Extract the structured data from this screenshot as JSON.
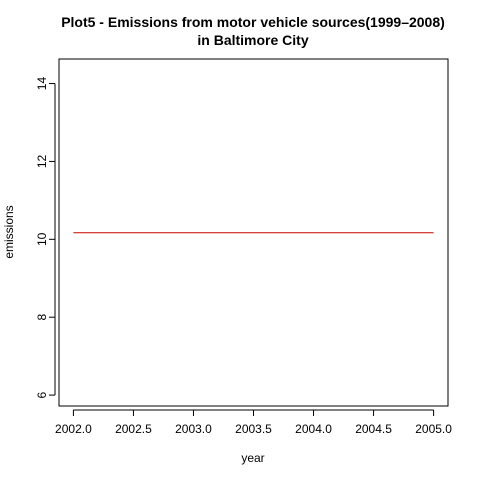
{
  "chart_data": {
    "type": "line",
    "title_lines": [
      "Plot5 - Emissions from motor vehicle sources(1999–2008)",
      "in Baltimore City"
    ],
    "xlabel": "year",
    "ylabel": "emissions",
    "xlim": [
      2001.88,
      2005.12
    ],
    "ylim": [
      5.72,
      14.63
    ],
    "x_ticks": [
      2002.0,
      2002.5,
      2003.0,
      2003.5,
      2004.0,
      2004.5,
      2005.0
    ],
    "x_tick_labels": [
      "2002.0",
      "2002.5",
      "2003.0",
      "2003.5",
      "2004.0",
      "2004.5",
      "2005.0"
    ],
    "y_ticks": [
      6,
      8,
      10,
      12,
      14
    ],
    "y_tick_labels": [
      "6",
      "8",
      "10",
      "12",
      "14"
    ],
    "grid": false,
    "legend": "none",
    "series": [
      {
        "color": "#cc0000",
        "x": [
          2002,
          2005
        ],
        "y": [
          10.17,
          10.17
        ]
      }
    ]
  }
}
